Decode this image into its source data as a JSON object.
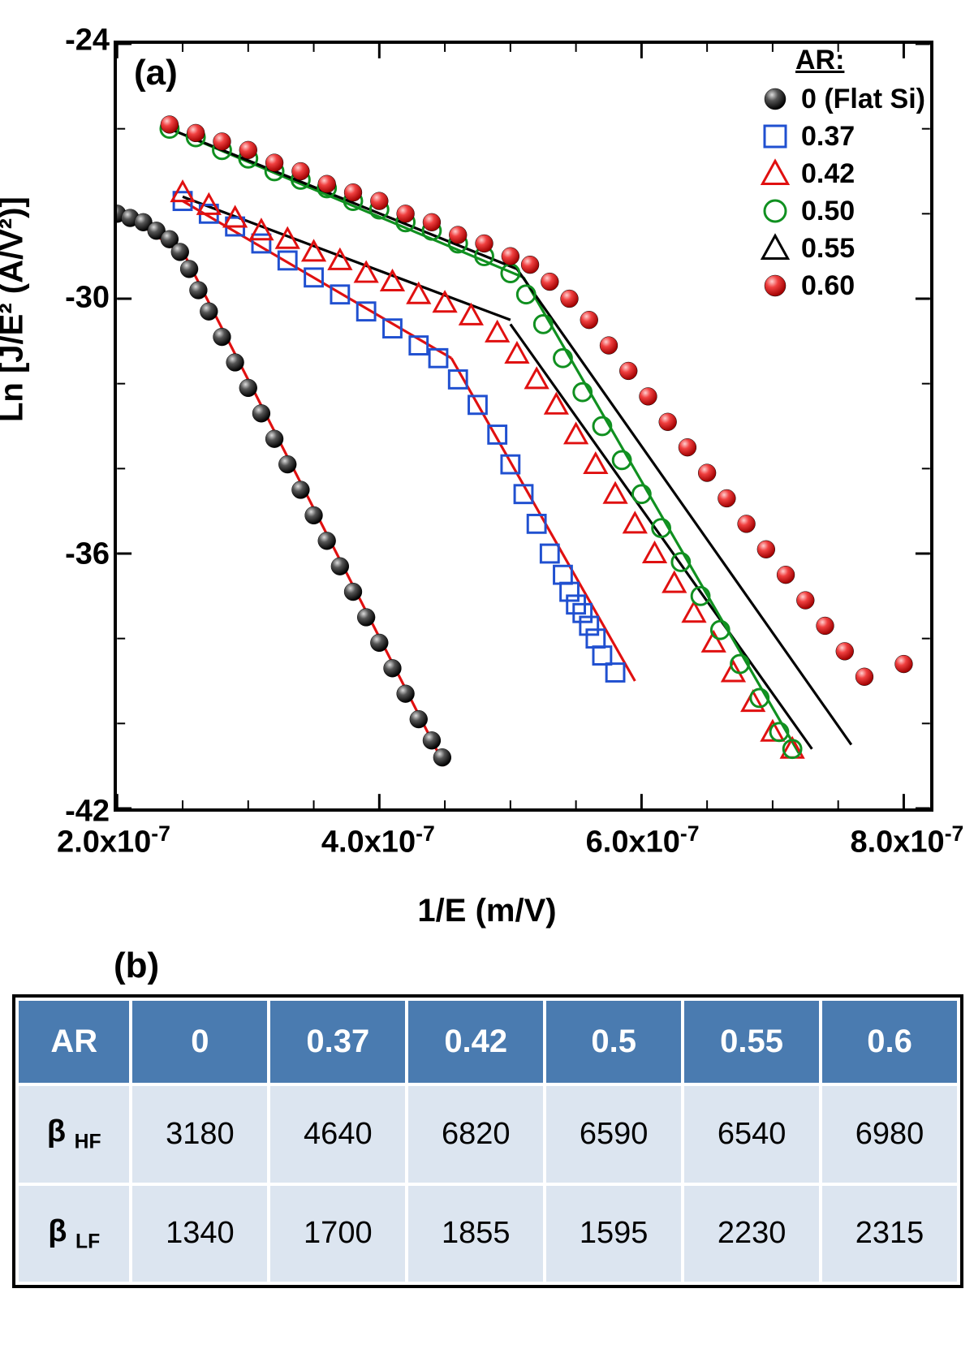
{
  "chart": {
    "type": "scatter_with_fits",
    "panel_label": "(a)",
    "legend_title": "AR:",
    "x_axis": {
      "label_html": "1/E (m/V)",
      "min": 2e-07,
      "max": 8.2e-07,
      "ticks": [
        {
          "value": 2e-07,
          "label": "2.0x10⁻⁷"
        },
        {
          "value": 4e-07,
          "label": "4.0x10⁻⁷"
        },
        {
          "value": 6e-07,
          "label": "6.0x10⁻⁷"
        },
        {
          "value": 8e-07,
          "label": "8.0x10⁻⁷"
        }
      ],
      "minor_tick_step": 5e-08
    },
    "y_axis": {
      "label_html": "Ln [J/E² (A/V²)]",
      "min": -42,
      "max": -24,
      "ticks": [
        {
          "value": -24,
          "label": "-24"
        },
        {
          "value": -30,
          "label": "-30"
        },
        {
          "value": -36,
          "label": "-36"
        },
        {
          "value": -42,
          "label": "-42"
        }
      ],
      "minor_tick_step": 2
    },
    "series": [
      {
        "name": "0 (Flat Si)",
        "marker": "sphere_black",
        "color": "#000000",
        "fill": "#000000",
        "data": [
          [
            2e-07,
            -28.0
          ],
          [
            2.1e-07,
            -28.1
          ],
          [
            2.2e-07,
            -28.2
          ],
          [
            2.3e-07,
            -28.4
          ],
          [
            2.4e-07,
            -28.6
          ],
          [
            2.48e-07,
            -28.9
          ],
          [
            2.55e-07,
            -29.3
          ],
          [
            2.62e-07,
            -29.8
          ],
          [
            2.7e-07,
            -30.3
          ],
          [
            2.8e-07,
            -30.9
          ],
          [
            2.9e-07,
            -31.5
          ],
          [
            3e-07,
            -32.1
          ],
          [
            3.1e-07,
            -32.7
          ],
          [
            3.2e-07,
            -33.3
          ],
          [
            3.3e-07,
            -33.9
          ],
          [
            3.4e-07,
            -34.5
          ],
          [
            3.5e-07,
            -35.1
          ],
          [
            3.6e-07,
            -35.7
          ],
          [
            3.7e-07,
            -36.3
          ],
          [
            3.8e-07,
            -36.9
          ],
          [
            3.9e-07,
            -37.5
          ],
          [
            4e-07,
            -38.1
          ],
          [
            4.1e-07,
            -38.7
          ],
          [
            4.2e-07,
            -39.3
          ],
          [
            4.3e-07,
            -39.9
          ],
          [
            4.4e-07,
            -40.4
          ],
          [
            4.48e-07,
            -40.8
          ]
        ],
        "fit_lines": [
          {
            "color": "#e01010",
            "p1": [
              2.02e-07,
              -27.9
            ],
            "p2": [
              2.52e-07,
              -29.0
            ]
          },
          {
            "color": "#e01010",
            "p1": [
              2.52e-07,
              -29.0
            ],
            "p2": [
              4.5e-07,
              -41.0
            ]
          }
        ]
      },
      {
        "name": "0.37",
        "marker": "square_open",
        "color": "#2050d0",
        "fill": "none",
        "data": [
          [
            2.5e-07,
            -27.7
          ],
          [
            2.7e-07,
            -28.0
          ],
          [
            2.9e-07,
            -28.3
          ],
          [
            3.1e-07,
            -28.7
          ],
          [
            3.3e-07,
            -29.1
          ],
          [
            3.5e-07,
            -29.5
          ],
          [
            3.7e-07,
            -29.9
          ],
          [
            3.9e-07,
            -30.3
          ],
          [
            4.1e-07,
            -30.7
          ],
          [
            4.3e-07,
            -31.1
          ],
          [
            4.45e-07,
            -31.4
          ],
          [
            4.6e-07,
            -31.9
          ],
          [
            4.75e-07,
            -32.5
          ],
          [
            4.9e-07,
            -33.2
          ],
          [
            5e-07,
            -33.9
          ],
          [
            5.1e-07,
            -34.6
          ],
          [
            5.2e-07,
            -35.3
          ],
          [
            5.3e-07,
            -36.0
          ],
          [
            5.4e-07,
            -36.5
          ],
          [
            5.45e-07,
            -36.9
          ],
          [
            5.5e-07,
            -37.2
          ],
          [
            5.55e-07,
            -37.4
          ],
          [
            5.6e-07,
            -37.7
          ],
          [
            5.65e-07,
            -38.0
          ],
          [
            5.7e-07,
            -38.4
          ],
          [
            5.8e-07,
            -38.8
          ]
        ],
        "fit_lines": [
          {
            "color": "#e01010",
            "p1": [
              2.5e-07,
              -27.7
            ],
            "p2": [
              4.55e-07,
              -31.4
            ]
          },
          {
            "color": "#e01010",
            "p1": [
              4.55e-07,
              -31.4
            ],
            "p2": [
              5.95e-07,
              -39.0
            ]
          }
        ]
      },
      {
        "name": "0.42",
        "marker": "triangle_open",
        "color": "#e01010",
        "fill": "none",
        "data": [
          [
            2.5e-07,
            -27.5
          ],
          [
            2.7e-07,
            -27.8
          ],
          [
            2.9e-07,
            -28.1
          ],
          [
            3.1e-07,
            -28.4
          ],
          [
            3.3e-07,
            -28.6
          ],
          [
            3.5e-07,
            -28.9
          ],
          [
            3.7e-07,
            -29.1
          ],
          [
            3.9e-07,
            -29.4
          ],
          [
            4.1e-07,
            -29.6
          ],
          [
            4.3e-07,
            -29.9
          ],
          [
            4.5e-07,
            -30.1
          ],
          [
            4.7e-07,
            -30.4
          ],
          [
            4.9e-07,
            -30.8
          ],
          [
            5.05e-07,
            -31.3
          ],
          [
            5.2e-07,
            -31.9
          ],
          [
            5.35e-07,
            -32.5
          ],
          [
            5.5e-07,
            -33.2
          ],
          [
            5.65e-07,
            -33.9
          ],
          [
            5.8e-07,
            -34.6
          ],
          [
            5.95e-07,
            -35.3
          ],
          [
            6.1e-07,
            -36.0
          ],
          [
            6.25e-07,
            -36.7
          ],
          [
            6.4e-07,
            -37.4
          ],
          [
            6.55e-07,
            -38.1
          ],
          [
            6.7e-07,
            -38.8
          ],
          [
            6.85e-07,
            -39.5
          ],
          [
            7e-07,
            -40.2
          ],
          [
            7.15e-07,
            -40.6
          ]
        ],
        "fit_lines": [
          {
            "color": "#000000",
            "p1": [
              2.5e-07,
              -27.6
            ],
            "p2": [
              5e-07,
              -30.5
            ]
          },
          {
            "color": "#000000",
            "p1": [
              5e-07,
              -30.6
            ],
            "p2": [
              7.3e-07,
              -40.6
            ]
          }
        ]
      },
      {
        "name": "0.50",
        "marker": "circle_open",
        "color": "#109020",
        "fill": "none",
        "data": [
          [
            2.4e-07,
            -26.0
          ],
          [
            2.6e-07,
            -26.2
          ],
          [
            2.8e-07,
            -26.5
          ],
          [
            3e-07,
            -26.7
          ],
          [
            3.2e-07,
            -27.0
          ],
          [
            3.4e-07,
            -27.2
          ],
          [
            3.6e-07,
            -27.4
          ],
          [
            3.8e-07,
            -27.7
          ],
          [
            4e-07,
            -27.9
          ],
          [
            4.2e-07,
            -28.2
          ],
          [
            4.4e-07,
            -28.4
          ],
          [
            4.6e-07,
            -28.7
          ],
          [
            4.8e-07,
            -29.0
          ],
          [
            5e-07,
            -29.4
          ],
          [
            5.12e-07,
            -29.9
          ],
          [
            5.25e-07,
            -30.6
          ],
          [
            5.4e-07,
            -31.4
          ],
          [
            5.55e-07,
            -32.2
          ],
          [
            5.7e-07,
            -33.0
          ],
          [
            5.85e-07,
            -33.8
          ],
          [
            6e-07,
            -34.6
          ],
          [
            6.15e-07,
            -35.4
          ],
          [
            6.3e-07,
            -36.2
          ],
          [
            6.45e-07,
            -37.0
          ],
          [
            6.6e-07,
            -37.8
          ],
          [
            6.75e-07,
            -38.6
          ],
          [
            6.9e-07,
            -39.4
          ],
          [
            7.05e-07,
            -40.2
          ],
          [
            7.15e-07,
            -40.6
          ]
        ],
        "fit_lines": [
          {
            "color": "#109020",
            "p1": [
              2.4e-07,
              -26.0
            ],
            "p2": [
              5.1e-07,
              -29.5
            ]
          },
          {
            "color": "#109020",
            "p1": [
              5.1e-07,
              -29.5
            ],
            "p2": [
              7.2e-07,
              -40.7
            ]
          }
        ]
      },
      {
        "name": "0.55",
        "marker": "triangle_open",
        "color": "#000000",
        "fill": "none",
        "data": [],
        "fit_lines": [
          {
            "color": "#000000",
            "p1": [
              2.4e-07,
              -26.0
            ],
            "p2": [
              5.05e-07,
              -29.3
            ]
          },
          {
            "color": "#000000",
            "p1": [
              5.05e-07,
              -29.3
            ],
            "p2": [
              7.6e-07,
              -40.5
            ]
          }
        ]
      },
      {
        "name": "0.60",
        "marker": "sphere_red",
        "color": "#e01010",
        "fill": "#e01010",
        "data": [
          [
            2.4e-07,
            -25.9
          ],
          [
            2.6e-07,
            -26.1
          ],
          [
            2.8e-07,
            -26.3
          ],
          [
            3e-07,
            -26.5
          ],
          [
            3.2e-07,
            -26.8
          ],
          [
            3.4e-07,
            -27.0
          ],
          [
            3.6e-07,
            -27.3
          ],
          [
            3.8e-07,
            -27.5
          ],
          [
            4e-07,
            -27.7
          ],
          [
            4.2e-07,
            -28.0
          ],
          [
            4.4e-07,
            -28.2
          ],
          [
            4.6e-07,
            -28.5
          ],
          [
            4.8e-07,
            -28.7
          ],
          [
            5e-07,
            -29.0
          ],
          [
            5.15e-07,
            -29.2
          ],
          [
            5.3e-07,
            -29.6
          ],
          [
            5.45e-07,
            -30.0
          ],
          [
            5.6e-07,
            -30.5
          ],
          [
            5.75e-07,
            -31.1
          ],
          [
            5.9e-07,
            -31.7
          ],
          [
            6.05e-07,
            -32.3
          ],
          [
            6.2e-07,
            -32.9
          ],
          [
            6.35e-07,
            -33.5
          ],
          [
            6.5e-07,
            -34.1
          ],
          [
            6.65e-07,
            -34.7
          ],
          [
            6.8e-07,
            -35.3
          ],
          [
            6.95e-07,
            -35.9
          ],
          [
            7.1e-07,
            -36.5
          ],
          [
            7.25e-07,
            -37.1
          ],
          [
            7.4e-07,
            -37.7
          ],
          [
            7.55e-07,
            -38.3
          ],
          [
            7.7e-07,
            -38.9
          ],
          [
            8e-07,
            -38.6
          ]
        ],
        "fit_lines": []
      }
    ],
    "colors": {
      "axis": "#000000",
      "background": "#ffffff"
    },
    "marker_size": 11,
    "line_width": 3.2,
    "font_family": "Arial",
    "title_fontsize_pt": 40,
    "tick_fontsize_pt": 38
  },
  "table": {
    "panel_label": "(b)",
    "columns": [
      "AR",
      "0",
      "0.37",
      "0.42",
      "0.5",
      "0.55",
      "0.6"
    ],
    "rows": [
      {
        "label_html": "β <span class='sub'>HF</span>",
        "values": [
          "3180",
          "4640",
          "6820",
          "6590",
          "6540",
          "6980"
        ]
      },
      {
        "label_html": "β <span class='sub'>LF</span>",
        "values": [
          "1340",
          "1700",
          "1855",
          "1595",
          "2230",
          "2315"
        ]
      }
    ],
    "header_bg": "#4a7bb0",
    "header_fg": "#ffffff",
    "cell_bg": "#dce5f0",
    "border_color": "#000000",
    "header_fontsize_pt": 40,
    "cell_fontsize_pt": 38
  }
}
